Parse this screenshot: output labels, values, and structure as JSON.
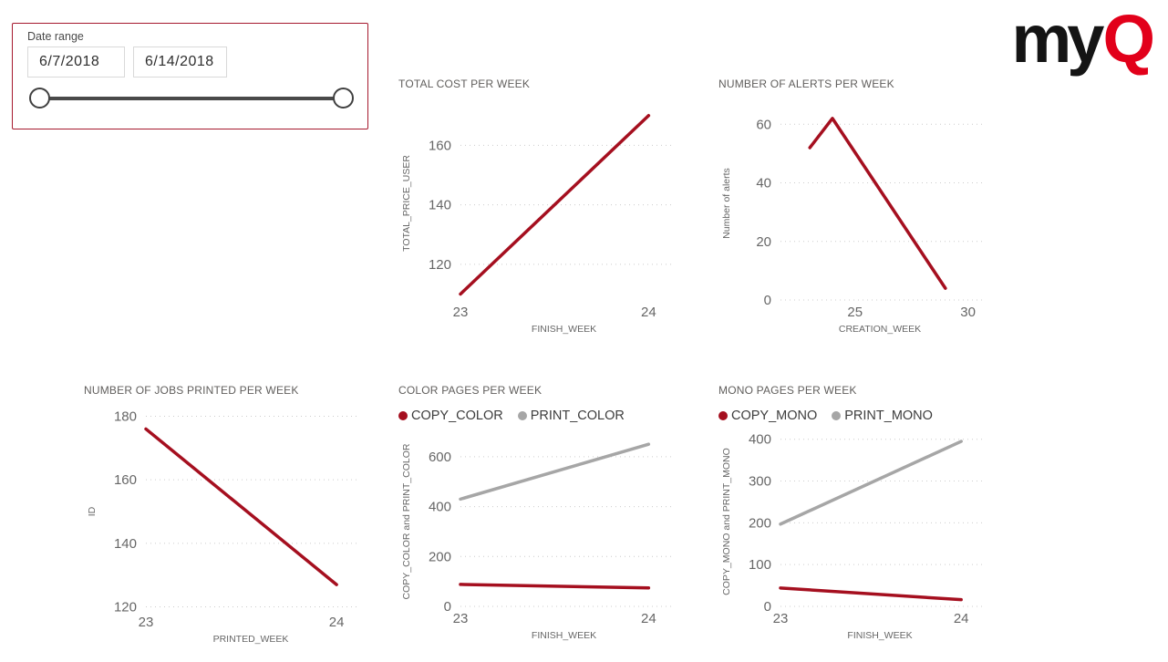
{
  "slicer": {
    "label": "Date range",
    "start_date": "6/7/2018",
    "end_date": "6/14/2018"
  },
  "logo": {
    "black_part": "my",
    "red_part": "Q"
  },
  "colors": {
    "line_red": "#a50f1f",
    "line_gray": "#a6a6a6",
    "logo_red": "#e2001a",
    "slicer_border": "#a6192e"
  },
  "chart_data": [
    {
      "type": "line",
      "title": "TOTAL COST PER WEEK",
      "xlabel": "FINISH_WEEK",
      "ylabel": "TOTAL_PRICE_USER",
      "x_ticks": [
        23,
        24
      ],
      "y_ticks": [
        120,
        140,
        160
      ],
      "xlim": [
        23,
        24.1
      ],
      "ylim": [
        108,
        173
      ],
      "grid": "dotted",
      "legend": false,
      "series": [
        {
          "name": "TOTAL_PRICE_USER",
          "color": "#a50f1f",
          "points": [
            [
              23,
              110
            ],
            [
              24,
              170
            ]
          ]
        }
      ]
    },
    {
      "type": "line",
      "title": "NUMBER OF ALERTS PER WEEK",
      "xlabel": "CREATION_WEEK",
      "ylabel": "Number of alerts",
      "x_ticks": [
        25,
        30
      ],
      "y_ticks": [
        0,
        20,
        40,
        60
      ],
      "xlim": [
        21.7,
        30.5
      ],
      "ylim": [
        0,
        66
      ],
      "grid": "dotted",
      "legend": false,
      "series": [
        {
          "name": "Number of alerts",
          "color": "#a50f1f",
          "points": [
            [
              23,
              52
            ],
            [
              24,
              62
            ],
            [
              29,
              4
            ]
          ]
        }
      ]
    },
    {
      "type": "line",
      "title": "NUMBER OF JOBS PRINTED PER WEEK",
      "xlabel": "PRINTED_WEEK",
      "ylabel": "ID",
      "x_ticks": [
        23,
        24
      ],
      "y_ticks": [
        120,
        140,
        160,
        180
      ],
      "xlim": [
        23,
        24.1
      ],
      "ylim": [
        119,
        181
      ],
      "grid": "dotted",
      "legend": false,
      "series": [
        {
          "name": "ID",
          "color": "#a50f1f",
          "points": [
            [
              23,
              176
            ],
            [
              24,
              127
            ]
          ]
        }
      ]
    },
    {
      "type": "line",
      "title": "COLOR PAGES PER WEEK",
      "xlabel": "FINISH_WEEK",
      "ylabel": "COPY_COLOR and PRINT_COLOR",
      "x_ticks": [
        23,
        24
      ],
      "y_ticks": [
        0,
        200,
        400,
        600
      ],
      "xlim": [
        23,
        24.1
      ],
      "ylim": [
        0,
        680
      ],
      "grid": "dotted",
      "legend": true,
      "series": [
        {
          "name": "COPY_COLOR",
          "color": "#a50f1f",
          "points": [
            [
              23,
              88
            ],
            [
              24,
              74
            ]
          ]
        },
        {
          "name": "PRINT_COLOR",
          "color": "#a6a6a6",
          "points": [
            [
              23,
              430
            ],
            [
              24,
              650
            ]
          ]
        }
      ]
    },
    {
      "type": "line",
      "title": "MONO PAGES PER WEEK",
      "xlabel": "FINISH_WEEK",
      "ylabel": "COPY_MONO and PRINT_MONO",
      "x_ticks": [
        23,
        24
      ],
      "y_ticks": [
        0,
        100,
        200,
        300,
        400
      ],
      "xlim": [
        23,
        24.1
      ],
      "ylim": [
        0,
        406
      ],
      "grid": "dotted",
      "legend": true,
      "series": [
        {
          "name": "COPY_MONO",
          "color": "#a50f1f",
          "points": [
            [
              23,
              44
            ],
            [
              24,
              16
            ]
          ]
        },
        {
          "name": "PRINT_MONO",
          "color": "#a6a6a6",
          "points": [
            [
              23,
              197
            ],
            [
              24,
              395
            ]
          ]
        }
      ]
    }
  ]
}
